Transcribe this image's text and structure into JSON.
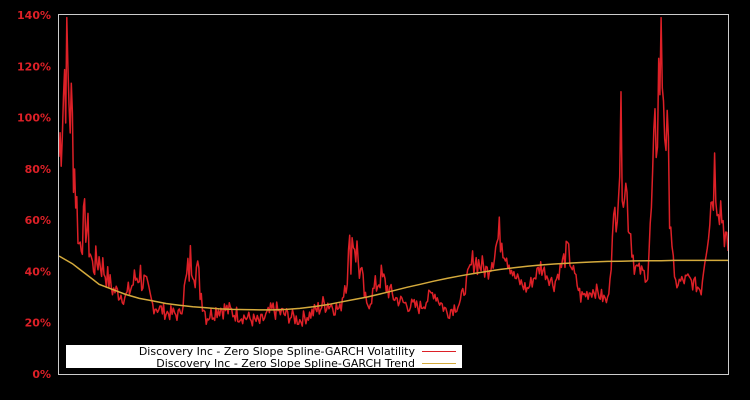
{
  "chart_data": {
    "type": "line",
    "title": "",
    "xlabel": "",
    "ylabel": "",
    "ylim": [
      0,
      140
    ],
    "y_ticks": [
      "0%",
      "20%",
      "40%",
      "60%",
      "80%",
      "100%",
      "120%",
      "140%"
    ],
    "y_tick_values": [
      0,
      20,
      40,
      60,
      80,
      100,
      120,
      140
    ],
    "grid": false,
    "legend_position": "lower-left-inside",
    "colors": {
      "background": "#000000",
      "axis": "#cccccc",
      "tick_label": "#dd2027",
      "volatility": "#dd2027",
      "trend": "#d4aa3c",
      "legend_bg": "#ffffff"
    },
    "x_normalized": [
      0.0,
      0.01,
      0.02,
      0.03,
      0.04,
      0.05,
      0.06,
      0.08,
      0.1,
      0.12,
      0.14,
      0.16,
      0.18,
      0.2,
      0.22,
      0.24,
      0.26,
      0.28,
      0.3,
      0.32,
      0.34,
      0.36,
      0.38,
      0.4,
      0.42,
      0.44,
      0.46,
      0.48,
      0.5,
      0.52,
      0.54,
      0.56,
      0.58,
      0.6,
      0.62,
      0.64,
      0.66,
      0.68,
      0.7,
      0.72,
      0.74,
      0.76,
      0.78,
      0.8,
      0.82,
      0.84,
      0.86,
      0.88,
      0.9,
      0.92,
      0.94,
      0.96,
      0.98,
      1.0
    ],
    "series": [
      {
        "name": "Discovery Inc - Zero Slope Spline-GARCH Volatility",
        "color": "#dd2027",
        "values": [
          85,
          125,
          95,
          50,
          60,
          42,
          45,
          33,
          30,
          40,
          27,
          24,
          23,
          48,
          22,
          26,
          24,
          22,
          20,
          25,
          23,
          21,
          24,
          28,
          25,
          55,
          26,
          38,
          30,
          27,
          26,
          32,
          24,
          28,
          45,
          40,
          55,
          38,
          33,
          42,
          35,
          48,
          30,
          33,
          28,
          90,
          42,
          38,
          130,
          35,
          37,
          33,
          80,
          48
        ]
      },
      {
        "name": "Discovery Inc - Zero Slope Spline-GARCH Trend",
        "color": "#d4aa3c",
        "values": [
          46,
          44.5,
          43,
          41,
          39,
          37,
          35,
          33,
          31,
          29.5,
          28.5,
          27.5,
          26.8,
          26.2,
          25.8,
          25.4,
          25.2,
          25.1,
          25,
          25,
          25.2,
          25.6,
          26.2,
          27,
          28,
          29,
          30,
          31.2,
          32.5,
          33.8,
          35,
          36.2,
          37.3,
          38.3,
          39.2,
          40,
          40.8,
          41.4,
          42,
          42.5,
          42.9,
          43.2,
          43.5,
          43.7,
          43.9,
          44,
          44.1,
          44.2,
          44.2,
          44.3,
          44.3,
          44.3,
          44.3,
          44.3
        ]
      }
    ]
  },
  "legend": {
    "items": [
      {
        "label": "Discovery Inc - Zero Slope Spline-GARCH Volatility",
        "color": "#dd2027"
      },
      {
        "label": "Discovery Inc - Zero Slope Spline-GARCH Trend",
        "color": "#d4aa3c"
      }
    ]
  }
}
